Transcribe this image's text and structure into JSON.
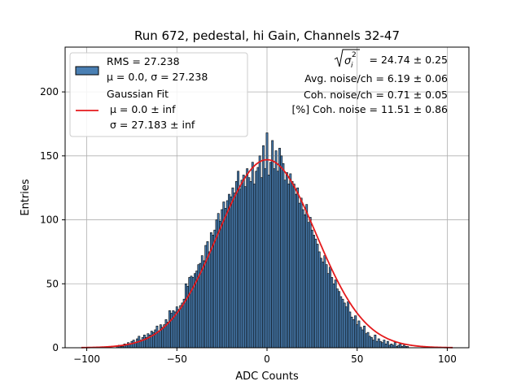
{
  "chart_data": {
    "type": "bar",
    "title": "Run 672, pedestal, hi Gain, Channels 32-47",
    "xlabel": "ADC Counts",
    "ylabel": "Entries",
    "xlim": [
      -112,
      112
    ],
    "ylim": [
      0,
      235
    ],
    "xticks": [
      -100,
      -50,
      0,
      50,
      100
    ],
    "xtick_labels": [
      "−100",
      "−50",
      "0",
      "50",
      "100"
    ],
    "yticks": [
      0,
      50,
      100,
      150,
      200
    ],
    "ytick_labels": [
      "0",
      "50",
      "100",
      "150",
      "200"
    ],
    "grid": true,
    "legend_position": "top-left",
    "histogram": {
      "name": "RMS = 27.238",
      "name_line2": "μ = 0.0, σ = 27.238",
      "color": "#4a7fb3",
      "edge_color": "#000000",
      "bin_width": 1,
      "bins": [
        {
          "x": -83,
          "y": 1
        },
        {
          "x": -82,
          "y": 2
        },
        {
          "x": -81,
          "y": 1
        },
        {
          "x": -80,
          "y": 1
        },
        {
          "x": -79,
          "y": 3
        },
        {
          "x": -78,
          "y": 2
        },
        {
          "x": -77,
          "y": 4
        },
        {
          "x": -76,
          "y": 3
        },
        {
          "x": -75,
          "y": 5
        },
        {
          "x": -74,
          "y": 6
        },
        {
          "x": -73,
          "y": 4
        },
        {
          "x": -72,
          "y": 7
        },
        {
          "x": -71,
          "y": 9
        },
        {
          "x": -70,
          "y": 6
        },
        {
          "x": -69,
          "y": 8
        },
        {
          "x": -68,
          "y": 10
        },
        {
          "x": -67,
          "y": 8
        },
        {
          "x": -66,
          "y": 11
        },
        {
          "x": -65,
          "y": 10
        },
        {
          "x": -64,
          "y": 13
        },
        {
          "x": -63,
          "y": 12
        },
        {
          "x": -62,
          "y": 14
        },
        {
          "x": -61,
          "y": 17
        },
        {
          "x": -60,
          "y": 13
        },
        {
          "x": -59,
          "y": 18
        },
        {
          "x": -58,
          "y": 16
        },
        {
          "x": -57,
          "y": 18
        },
        {
          "x": -56,
          "y": 22
        },
        {
          "x": -55,
          "y": 20
        },
        {
          "x": -54,
          "y": 29
        },
        {
          "x": -53,
          "y": 27
        },
        {
          "x": -52,
          "y": 29
        },
        {
          "x": -51,
          "y": 28
        },
        {
          "x": -50,
          "y": 32
        },
        {
          "x": -49,
          "y": 30
        },
        {
          "x": -48,
          "y": 33
        },
        {
          "x": -47,
          "y": 35
        },
        {
          "x": -46,
          "y": 38
        },
        {
          "x": -45,
          "y": 50
        },
        {
          "x": -44,
          "y": 48
        },
        {
          "x": -43,
          "y": 55
        },
        {
          "x": -42,
          "y": 56
        },
        {
          "x": -41,
          "y": 55
        },
        {
          "x": -40,
          "y": 58
        },
        {
          "x": -39,
          "y": 60
        },
        {
          "x": -38,
          "y": 65
        },
        {
          "x": -37,
          "y": 66
        },
        {
          "x": -36,
          "y": 72
        },
        {
          "x": -35,
          "y": 68
        },
        {
          "x": -34,
          "y": 80
        },
        {
          "x": -33,
          "y": 83
        },
        {
          "x": -32,
          "y": 75
        },
        {
          "x": -31,
          "y": 90
        },
        {
          "x": -30,
          "y": 88
        },
        {
          "x": -29,
          "y": 92
        },
        {
          "x": -28,
          "y": 100
        },
        {
          "x": -27,
          "y": 105
        },
        {
          "x": -26,
          "y": 99
        },
        {
          "x": -25,
          "y": 108
        },
        {
          "x": -24,
          "y": 114
        },
        {
          "x": -23,
          "y": 109
        },
        {
          "x": -22,
          "y": 115
        },
        {
          "x": -21,
          "y": 120
        },
        {
          "x": -20,
          "y": 118
        },
        {
          "x": -19,
          "y": 125
        },
        {
          "x": -18,
          "y": 121
        },
        {
          "x": -17,
          "y": 130
        },
        {
          "x": -16,
          "y": 138
        },
        {
          "x": -15,
          "y": 124
        },
        {
          "x": -14,
          "y": 131
        },
        {
          "x": -13,
          "y": 135
        },
        {
          "x": -12,
          "y": 126
        },
        {
          "x": -11,
          "y": 140
        },
        {
          "x": -10,
          "y": 133
        },
        {
          "x": -9,
          "y": 130
        },
        {
          "x": -8,
          "y": 145
        },
        {
          "x": -7,
          "y": 128
        },
        {
          "x": -6,
          "y": 138
        },
        {
          "x": -5,
          "y": 141
        },
        {
          "x": -4,
          "y": 150
        },
        {
          "x": -3,
          "y": 133
        },
        {
          "x": -2,
          "y": 158
        },
        {
          "x": -1,
          "y": 140
        },
        {
          "x": 0,
          "y": 168
        },
        {
          "x": 1,
          "y": 135
        },
        {
          "x": 2,
          "y": 145
        },
        {
          "x": 3,
          "y": 162
        },
        {
          "x": 4,
          "y": 140
        },
        {
          "x": 5,
          "y": 154
        },
        {
          "x": 6,
          "y": 138
        },
        {
          "x": 7,
          "y": 156
        },
        {
          "x": 8,
          "y": 150
        },
        {
          "x": 9,
          "y": 144
        },
        {
          "x": 10,
          "y": 131
        },
        {
          "x": 11,
          "y": 137
        },
        {
          "x": 12,
          "y": 128
        },
        {
          "x": 13,
          "y": 136
        },
        {
          "x": 14,
          "y": 130
        },
        {
          "x": 15,
          "y": 128
        },
        {
          "x": 16,
          "y": 120
        },
        {
          "x": 17,
          "y": 125
        },
        {
          "x": 18,
          "y": 113
        },
        {
          "x": 19,
          "y": 117
        },
        {
          "x": 20,
          "y": 108
        },
        {
          "x": 21,
          "y": 104
        },
        {
          "x": 22,
          "y": 112
        },
        {
          "x": 23,
          "y": 98
        },
        {
          "x": 24,
          "y": 102
        },
        {
          "x": 25,
          "y": 92
        },
        {
          "x": 26,
          "y": 88
        },
        {
          "x": 27,
          "y": 85
        },
        {
          "x": 28,
          "y": 81
        },
        {
          "x": 29,
          "y": 75
        },
        {
          "x": 30,
          "y": 70
        },
        {
          "x": 31,
          "y": 67
        },
        {
          "x": 32,
          "y": 72
        },
        {
          "x": 33,
          "y": 65
        },
        {
          "x": 34,
          "y": 58
        },
        {
          "x": 35,
          "y": 63
        },
        {
          "x": 36,
          "y": 55
        },
        {
          "x": 37,
          "y": 50
        },
        {
          "x": 38,
          "y": 53
        },
        {
          "x": 39,
          "y": 46
        },
        {
          "x": 40,
          "y": 44
        },
        {
          "x": 41,
          "y": 40
        },
        {
          "x": 42,
          "y": 38
        },
        {
          "x": 43,
          "y": 35
        },
        {
          "x": 44,
          "y": 32
        },
        {
          "x": 45,
          "y": 36
        },
        {
          "x": 46,
          "y": 28
        },
        {
          "x": 47,
          "y": 24
        },
        {
          "x": 48,
          "y": 22
        },
        {
          "x": 49,
          "y": 25
        },
        {
          "x": 50,
          "y": 18
        },
        {
          "x": 51,
          "y": 21
        },
        {
          "x": 52,
          "y": 16
        },
        {
          "x": 53,
          "y": 14
        },
        {
          "x": 54,
          "y": 17
        },
        {
          "x": 55,
          "y": 11
        },
        {
          "x": 56,
          "y": 12
        },
        {
          "x": 57,
          "y": 9
        },
        {
          "x": 58,
          "y": 8
        },
        {
          "x": 59,
          "y": 6
        },
        {
          "x": 60,
          "y": 10
        },
        {
          "x": 61,
          "y": 5
        },
        {
          "x": 62,
          "y": 7
        },
        {
          "x": 63,
          "y": 5
        },
        {
          "x": 64,
          "y": 4
        },
        {
          "x": 65,
          "y": 6
        },
        {
          "x": 66,
          "y": 3
        },
        {
          "x": 67,
          "y": 5
        },
        {
          "x": 68,
          "y": 2
        },
        {
          "x": 69,
          "y": 3
        },
        {
          "x": 70,
          "y": 2
        },
        {
          "x": 71,
          "y": 4
        },
        {
          "x": 72,
          "y": 1
        },
        {
          "x": 73,
          "y": 2
        },
        {
          "x": 74,
          "y": 3
        },
        {
          "x": 75,
          "y": 1
        },
        {
          "x": 76,
          "y": 2
        },
        {
          "x": 77,
          "y": 1
        },
        {
          "x": 78,
          "y": 1
        }
      ]
    },
    "fit": {
      "name": "Gaussian Fit",
      "mu_label": "μ = 0.0 ± inf",
      "sigma_label": "σ = 27.183 ± inf",
      "mu": 0.0,
      "sigma": 27.183,
      "amplitude": 147,
      "x_range": [
        -103,
        103
      ],
      "color": "#e41a1c"
    },
    "annotations": {
      "line1_suffix": " = 24.74 ± 0.25",
      "line2": "Avg. noise/ch = 6.19 ± 0.06",
      "line3": "Coh. noise/ch = 0.71 ± 0.05",
      "line4": "[%] Coh. noise = 11.51 ± 0.86"
    }
  }
}
